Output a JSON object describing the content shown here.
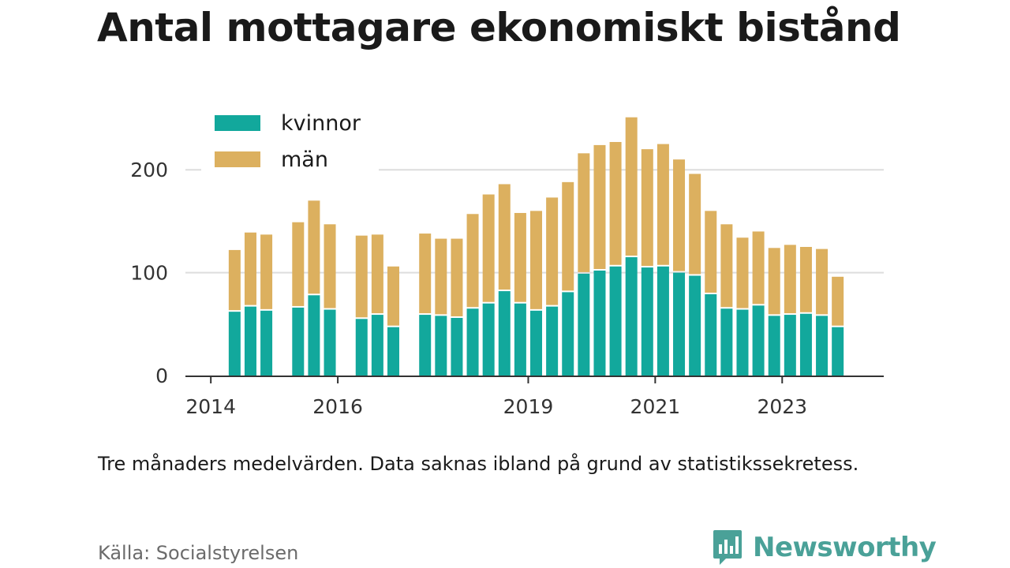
{
  "header": {
    "title": "Antal mottagare ekonomiskt bistånd"
  },
  "footer": {
    "note": "Tre månaders medelvärden. Data saknas ibland på grund av statistikssekretess.",
    "source": "Källa: Socialstyrelsen",
    "brand": "Newsworthy"
  },
  "colors": {
    "kvinnor": "#12a89c",
    "man": "#dcb05f",
    "grid": "#dddddd",
    "axis": "#333333",
    "brand": "#4aa198"
  },
  "chart_data": {
    "type": "bar",
    "stacked": true,
    "title": "Antal mottagare ekonomiskt bistånd",
    "xlabel": "",
    "ylabel": "",
    "ylim": [
      0,
      250
    ],
    "xlim": [
      2013.6,
      2024.6
    ],
    "yticks": [
      0,
      100,
      200
    ],
    "xticks": [
      {
        "value": 2014,
        "label": "2014"
      },
      {
        "value": 2016,
        "label": "2016"
      },
      {
        "value": 2019,
        "label": "2019"
      },
      {
        "value": 2021,
        "label": "2021"
      },
      {
        "value": 2023,
        "label": "2023"
      }
    ],
    "grid": true,
    "legend_position": "top-left",
    "x": [
      2014.375,
      2014.625,
      2014.875,
      2015.375,
      2015.625,
      2015.875,
      2016.375,
      2016.625,
      2016.875,
      2017.375,
      2017.625,
      2017.875,
      2018.125,
      2018.375,
      2018.625,
      2018.875,
      2019.125,
      2019.375,
      2019.625,
      2019.875,
      2020.125,
      2020.375,
      2020.625,
      2020.875,
      2021.125,
      2021.375,
      2021.625,
      2021.875,
      2022.125,
      2022.375,
      2022.625,
      2022.875,
      2023.125,
      2023.375,
      2023.625,
      2023.875
    ],
    "series": [
      {
        "name": "kvinnor",
        "values": [
          62,
          67,
          63,
          66,
          78,
          64,
          55,
          59,
          47,
          59,
          58,
          56,
          65,
          70,
          82,
          70,
          63,
          67,
          81,
          99,
          102,
          106,
          115,
          105,
          106,
          100,
          97,
          79,
          65,
          64,
          68,
          58,
          59,
          60,
          58,
          47
        ]
      },
      {
        "name": "män",
        "values": [
          60,
          72,
          74,
          83,
          92,
          83,
          81,
          78,
          59,
          79,
          75,
          77,
          92,
          106,
          104,
          88,
          97,
          106,
          107,
          117,
          122,
          121,
          136,
          115,
          119,
          110,
          99,
          81,
          82,
          70,
          72,
          66,
          68,
          65,
          65,
          49
        ]
      }
    ]
  }
}
